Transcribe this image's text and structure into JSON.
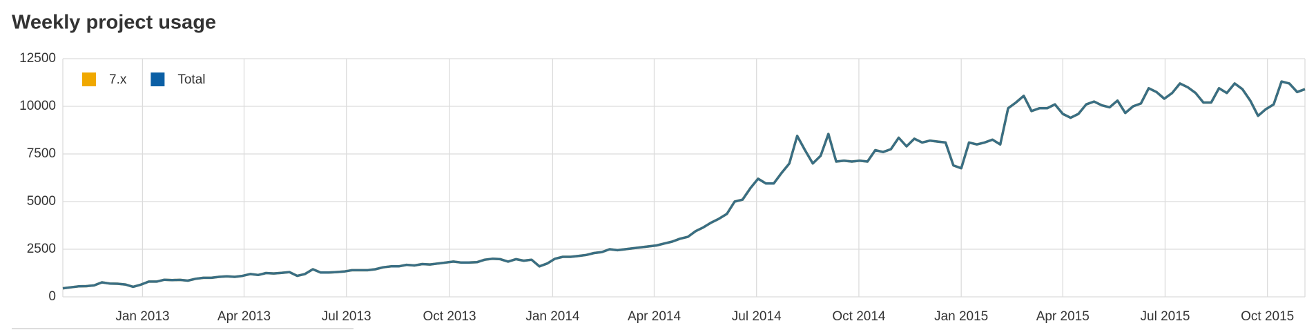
{
  "chart_data": {
    "type": "line",
    "title": "Weekly project usage",
    "x": [
      0,
      1,
      2,
      3,
      4,
      5,
      6,
      7,
      8,
      9,
      10,
      11,
      12,
      13,
      14,
      15,
      16,
      17,
      18,
      19,
      20,
      21,
      22,
      23,
      24,
      25,
      26,
      27,
      28,
      29,
      30,
      31,
      32,
      33,
      34,
      35,
      36,
      37,
      38,
      39,
      40,
      41,
      42,
      43,
      44,
      45,
      46,
      47,
      48,
      49,
      50,
      51,
      52,
      53,
      54,
      55,
      56,
      57,
      58,
      59,
      60,
      61,
      62,
      63,
      64,
      65,
      66,
      67,
      68,
      69,
      70,
      71,
      72,
      73,
      74,
      75,
      76,
      77,
      78,
      79,
      80,
      81,
      82,
      83,
      84,
      85,
      86,
      87,
      88,
      89,
      90,
      91,
      92,
      93,
      94,
      95,
      96,
      97,
      98,
      99,
      100,
      101,
      102,
      103,
      104,
      105,
      106,
      107,
      108,
      109,
      110,
      111,
      112,
      113,
      114,
      115,
      116,
      117,
      118,
      119,
      120,
      121,
      122,
      123,
      124,
      125,
      126,
      127,
      128,
      129,
      130,
      131,
      132,
      133,
      134,
      135,
      136,
      137,
      138,
      139,
      140,
      141,
      142,
      143,
      144,
      145,
      146,
      147,
      148,
      149,
      150,
      151,
      152,
      153,
      154,
      155,
      156,
      157,
      158,
      159
    ],
    "series": [
      {
        "name": "7.x",
        "color": "#f0a800",
        "values": [
          450,
          500,
          550,
          560,
          600,
          760,
          700,
          690,
          650,
          530,
          640,
          800,
          800,
          900,
          880,
          890,
          850,
          950,
          1000,
          1000,
          1050,
          1080,
          1050,
          1100,
          1200,
          1150,
          1250,
          1230,
          1260,
          1300,
          1100,
          1200,
          1450,
          1280,
          1280,
          1300,
          1330,
          1400,
          1400,
          1400,
          1450,
          1550,
          1600,
          1600,
          1680,
          1650,
          1720,
          1700,
          1750,
          1800,
          1850,
          1800,
          1800,
          1820,
          1950,
          2000,
          1980,
          1850,
          1980,
          1900,
          1950,
          1600,
          1750,
          2000,
          2100,
          2100,
          2150,
          2200,
          2300,
          2350,
          2500,
          2450,
          2500,
          2550,
          2600,
          2650,
          2700,
          2800,
          2900,
          3050,
          3150,
          3450,
          3650,
          3900,
          4100,
          4350,
          5000,
          5100,
          5700,
          6200,
          5950,
          5950,
          6500,
          7000,
          8450,
          7700,
          7000,
          7400,
          8550,
          7100,
          7150,
          7100,
          7150,
          7100,
          7700,
          7600,
          7750,
          8350,
          7900,
          8300,
          8100,
          8200,
          8150,
          8100,
          6900,
          6750,
          8100,
          8000,
          8100,
          8250,
          8000,
          9900,
          10200,
          10550,
          9750,
          9900,
          9900,
          10100,
          9600,
          9400,
          9600,
          10100,
          10250,
          10050,
          9950,
          10300,
          9650,
          10000,
          10150,
          10950,
          10750,
          10400,
          10700,
          11200,
          11000,
          10700,
          10200,
          10200,
          10950,
          10700,
          11200,
          10900,
          10300,
          9500,
          9850,
          10100,
          11300,
          11200,
          10750,
          10900
        ]
      },
      {
        "name": "Total",
        "color": "#0b5fa5",
        "values": [
          450,
          500,
          550,
          560,
          600,
          760,
          700,
          690,
          650,
          530,
          640,
          800,
          800,
          900,
          880,
          890,
          850,
          950,
          1000,
          1000,
          1050,
          1080,
          1050,
          1100,
          1200,
          1150,
          1250,
          1230,
          1260,
          1300,
          1100,
          1200,
          1450,
          1280,
          1280,
          1300,
          1330,
          1400,
          1400,
          1400,
          1450,
          1550,
          1600,
          1600,
          1680,
          1650,
          1720,
          1700,
          1750,
          1800,
          1850,
          1800,
          1800,
          1820,
          1950,
          2000,
          1980,
          1850,
          1980,
          1900,
          1950,
          1600,
          1750,
          2000,
          2100,
          2100,
          2150,
          2200,
          2300,
          2350,
          2500,
          2450,
          2500,
          2550,
          2600,
          2650,
          2700,
          2800,
          2900,
          3050,
          3150,
          3450,
          3650,
          3900,
          4100,
          4350,
          5000,
          5100,
          5700,
          6200,
          5950,
          5950,
          6500,
          7000,
          8450,
          7700,
          7000,
          7400,
          8550,
          7100,
          7150,
          7100,
          7150,
          7100,
          7700,
          7600,
          7750,
          8350,
          7900,
          8300,
          8100,
          8200,
          8150,
          8100,
          6900,
          6750,
          8100,
          8000,
          8100,
          8250,
          8000,
          9900,
          10200,
          10550,
          9750,
          9900,
          9900,
          10100,
          9600,
          9400,
          9600,
          10100,
          10250,
          10050,
          9950,
          10300,
          9650,
          10000,
          10150,
          10950,
          10750,
          10400,
          10700,
          11200,
          11000,
          10700,
          10200,
          10200,
          10950,
          10700,
          11200,
          10900,
          10300,
          9500,
          9850,
          10100,
          11300,
          11200,
          10750,
          10900
        ]
      }
    ],
    "xlim": [
      0,
      159
    ],
    "xticks": [
      {
        "value": 10.2,
        "label": "Jan 2013"
      },
      {
        "value": 23.2,
        "label": "Apr 2013"
      },
      {
        "value": 36.3,
        "label": "Jul 2013"
      },
      {
        "value": 49.5,
        "label": "Oct 2013"
      },
      {
        "value": 62.7,
        "label": "Jan 2014"
      },
      {
        "value": 75.7,
        "label": "Apr 2014"
      },
      {
        "value": 88.8,
        "label": "Jul 2014"
      },
      {
        "value": 101.9,
        "label": "Oct 2014"
      },
      {
        "value": 115.0,
        "label": "Jan 2015"
      },
      {
        "value": 128.0,
        "label": "Apr 2015"
      },
      {
        "value": 141.1,
        "label": "Jul 2015"
      },
      {
        "value": 154.2,
        "label": "Oct 2015"
      }
    ],
    "ylim": [
      0,
      12500
    ],
    "yticks": [
      0,
      2500,
      5000,
      7500,
      10000,
      12500
    ],
    "grid": true,
    "legend": "top-left"
  }
}
